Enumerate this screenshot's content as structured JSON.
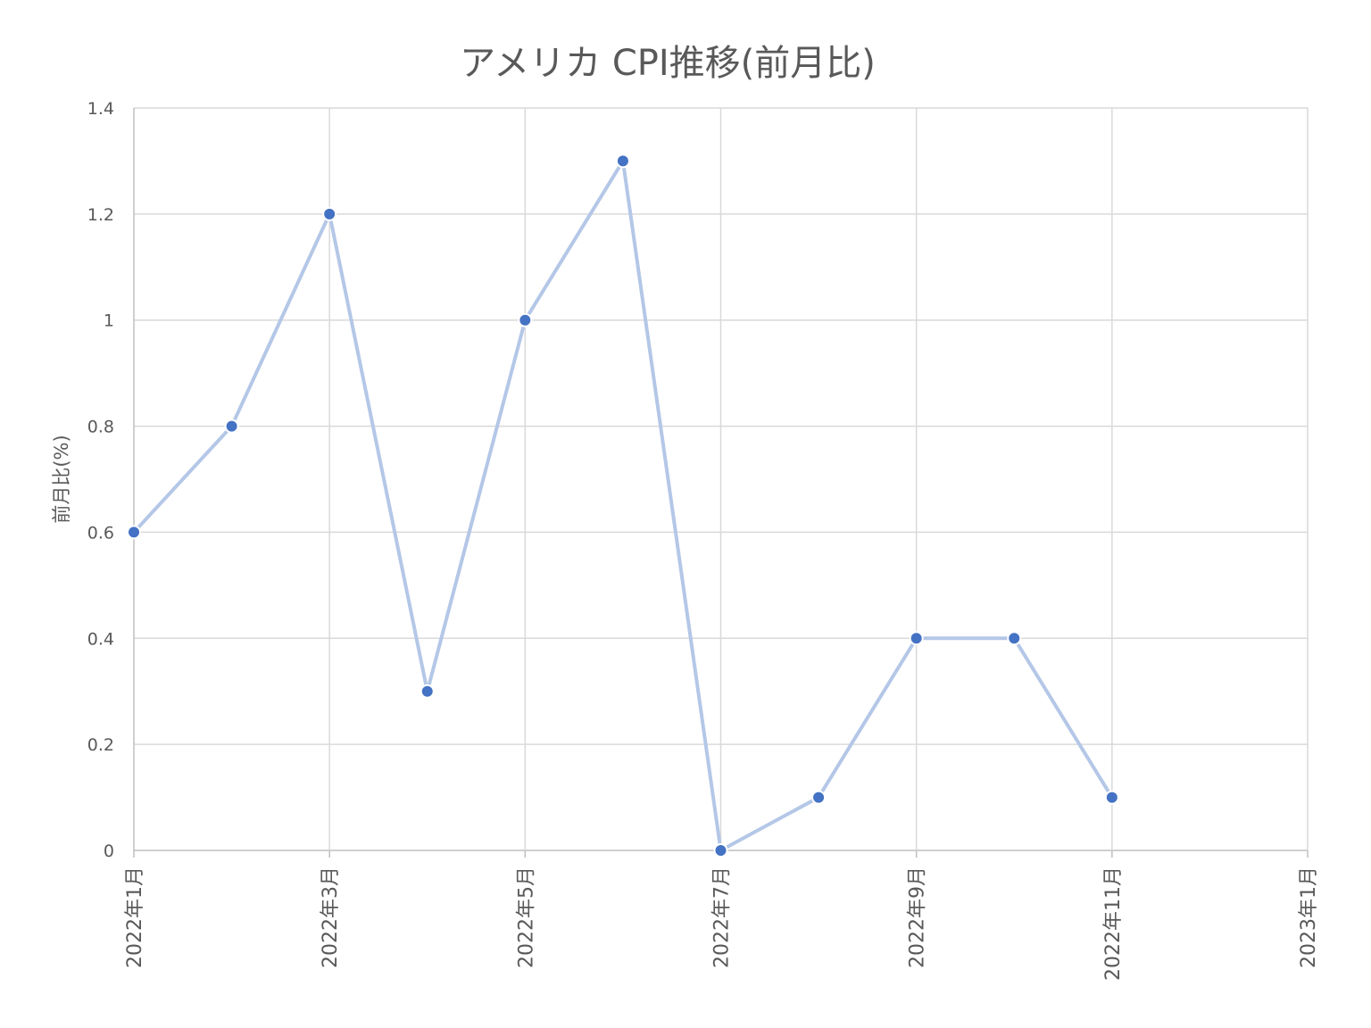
{
  "chart_data": {
    "type": "line",
    "title": "アメリカ CPI推移(前月比)",
    "xlabel": "",
    "ylabel": "前月比(%)",
    "ylim": [
      0,
      1.4
    ],
    "y_ticks": [
      "0",
      "0.2",
      "0.4",
      "0.6",
      "0.8",
      "1",
      "1.2",
      "1.4"
    ],
    "x_ticks": [
      "2022年1月",
      "2022年3月",
      "2022年5月",
      "2022年7月",
      "2022年9月",
      "2022年11月",
      "2023年1月"
    ],
    "grid": true,
    "legend": "none",
    "series": [
      {
        "x": [
          "2022-01",
          "2022-02",
          "2022-03",
          "2022-04",
          "2022-05",
          "2022-06",
          "2022-07",
          "2022-08",
          "2022-09",
          "2022-10",
          "2022-11"
        ],
        "values": [
          0.6,
          0.8,
          1.2,
          0.3,
          1.0,
          1.3,
          0.0,
          0.1,
          0.4,
          0.4,
          0.1
        ],
        "line_color": "#b4c7e7",
        "marker_color": "#4472c4"
      }
    ]
  }
}
